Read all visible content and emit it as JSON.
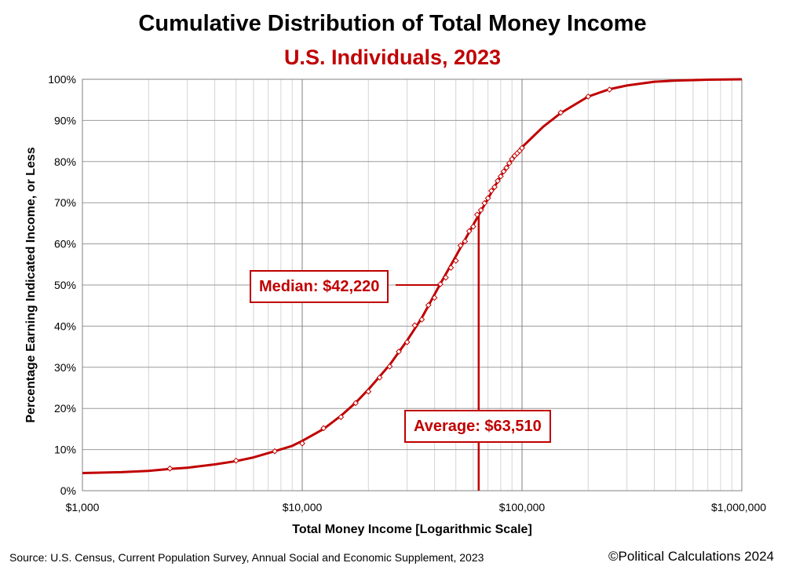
{
  "chart_data": {
    "type": "line",
    "title": "Cumulative Distribution of Total Money Income",
    "subtitle": "U.S. Individuals, 2023",
    "xlabel": "Total Money Income [Logarithmic Scale]",
    "ylabel": "Percentage Earning Indicated Income, or Less",
    "x_scale": "log",
    "xlim": [
      1000,
      1000000
    ],
    "ylim": [
      0,
      100
    ],
    "x_ticks": [
      {
        "value": 1000,
        "label": "$1,000"
      },
      {
        "value": 10000,
        "label": "$10,000"
      },
      {
        "value": 100000,
        "label": "$100,000"
      },
      {
        "value": 1000000,
        "label": "$1,000,000"
      }
    ],
    "y_ticks": [
      {
        "value": 0,
        "label": "0%"
      },
      {
        "value": 10,
        "label": "10%"
      },
      {
        "value": 20,
        "label": "20%"
      },
      {
        "value": 30,
        "label": "30%"
      },
      {
        "value": 40,
        "label": "40%"
      },
      {
        "value": 50,
        "label": "50%"
      },
      {
        "value": 60,
        "label": "60%"
      },
      {
        "value": 70,
        "label": "70%"
      },
      {
        "value": 80,
        "label": "80%"
      },
      {
        "value": 90,
        "label": "90%"
      },
      {
        "value": 100,
        "label": "100%"
      }
    ],
    "grid": true,
    "series": [
      {
        "type": "scatter",
        "color": "#c00000",
        "marker": "diamond",
        "points": [
          [
            2500,
            5.4
          ],
          [
            5000,
            7.3
          ],
          [
            7500,
            9.6
          ],
          [
            10000,
            11.5
          ],
          [
            12500,
            15.2
          ],
          [
            15000,
            17.9
          ],
          [
            17500,
            21.3
          ],
          [
            20000,
            24.1
          ],
          [
            22500,
            27.5
          ],
          [
            25000,
            30.2
          ],
          [
            27500,
            33.8
          ],
          [
            30000,
            36.1
          ],
          [
            32500,
            40.2
          ],
          [
            35000,
            41.6
          ],
          [
            37500,
            45.1
          ],
          [
            40000,
            46.9
          ],
          [
            42500,
            50.2
          ],
          [
            45000,
            51.8
          ],
          [
            47500,
            54.2
          ],
          [
            50000,
            55.9
          ],
          [
            52500,
            59.6
          ],
          [
            55000,
            60.6
          ],
          [
            57500,
            63.1
          ],
          [
            60000,
            64.2
          ],
          [
            62500,
            67.1
          ],
          [
            65000,
            68.2
          ],
          [
            67500,
            69.9
          ],
          [
            70000,
            71.1
          ],
          [
            72500,
            72.9
          ],
          [
            75000,
            73.8
          ],
          [
            77500,
            75.3
          ],
          [
            80000,
            76.4
          ],
          [
            82500,
            77.6
          ],
          [
            85000,
            78.5
          ],
          [
            87500,
            79.6
          ],
          [
            90000,
            80.6
          ],
          [
            92500,
            81.4
          ],
          [
            95000,
            82.0
          ],
          [
            97500,
            82.6
          ],
          [
            100000,
            83.3
          ],
          [
            150000,
            91.9
          ],
          [
            200000,
            95.8
          ],
          [
            250000,
            97.5
          ]
        ]
      },
      {
        "type": "line",
        "color": "#c00000",
        "points": [
          [
            1000,
            4.3
          ],
          [
            1500,
            4.5
          ],
          [
            2000,
            4.8
          ],
          [
            2500,
            5.3
          ],
          [
            3000,
            5.6
          ],
          [
            4000,
            6.4
          ],
          [
            5000,
            7.2
          ],
          [
            6000,
            8.1
          ],
          [
            7500,
            9.6
          ],
          [
            9000,
            10.9
          ],
          [
            10000,
            12.1
          ],
          [
            12500,
            15.0
          ],
          [
            15000,
            18.2
          ],
          [
            17500,
            21.4
          ],
          [
            20000,
            24.6
          ],
          [
            25000,
            30.6
          ],
          [
            30000,
            36.5
          ],
          [
            35000,
            42.0
          ],
          [
            42220,
            50.0
          ],
          [
            50000,
            57.0
          ],
          [
            55000,
            61.0
          ],
          [
            63510,
            67.0
          ],
          [
            70000,
            71.0
          ],
          [
            80000,
            76.5
          ],
          [
            90000,
            80.5
          ],
          [
            100000,
            83.5
          ],
          [
            125000,
            88.5
          ],
          [
            150000,
            91.8
          ],
          [
            200000,
            95.8
          ],
          [
            250000,
            97.6
          ],
          [
            300000,
            98.5
          ],
          [
            400000,
            99.4
          ],
          [
            500000,
            99.7
          ],
          [
            700000,
            99.9
          ],
          [
            1000000,
            100.0
          ]
        ]
      }
    ],
    "annotations": [
      {
        "label": "Median: $42,220",
        "x": 42220,
        "y": 50.0
      },
      {
        "label": "Average: $63,510",
        "x": 63510,
        "y": 67.0
      }
    ]
  },
  "footer": {
    "source": "Source: U.S. Census, Current Population Survey, Annual Social and Economic Supplement, 2023",
    "copyright": "©Political Calculations 2024"
  }
}
